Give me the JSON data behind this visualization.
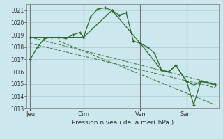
{
  "background_color": "#cce8ee",
  "grid_color": "#aacccc",
  "line_color": "#2d6a2d",
  "xlabel": "Pression niveau de la mer( hPa )",
  "ylim": [
    1013,
    1021.5
  ],
  "xlim": [
    0,
    27
  ],
  "yticks": [
    1013,
    1014,
    1015,
    1016,
    1017,
    1018,
    1019,
    1020,
    1021
  ],
  "day_labels": [
    "Jeu",
    "Dim",
    "Ven",
    "Sam"
  ],
  "day_positions": [
    0.5,
    8,
    16,
    22.5
  ],
  "vline_positions": [
    0.5,
    8,
    16,
    22.5
  ],
  "series1_x": [
    0.5,
    1.5,
    2.5,
    3.5,
    4.5,
    5.5,
    6.5,
    7.5,
    8.0,
    9.0,
    10.0,
    11.0,
    12.0,
    13.0,
    14.0,
    15.0,
    16.0,
    17.0,
    18.0,
    19.0,
    20.0,
    21.0,
    22.5,
    23.5,
    24.5,
    25.5,
    26.5
  ],
  "series1_y": [
    1017.0,
    1018.0,
    1018.7,
    1018.8,
    1018.8,
    1018.7,
    1019.0,
    1019.2,
    1018.8,
    1020.5,
    1021.1,
    1021.2,
    1021.0,
    1020.6,
    1020.8,
    1018.5,
    1018.3,
    1018.0,
    1017.5,
    1016.1,
    1016.0,
    1016.5,
    1015.2,
    1014.9,
    1015.2,
    1015.1,
    1014.9
  ],
  "trend1_x": [
    0.5,
    26.5
  ],
  "trend1_y": [
    1018.8,
    1015.0
  ],
  "trend2_x": [
    0.5,
    26.5
  ],
  "trend2_y": [
    1018.3,
    1014.7
  ],
  "trend3_x": [
    4.5,
    26.5
  ],
  "trend3_y": [
    1018.5,
    1013.3
  ],
  "series2_x": [
    0.5,
    4.5,
    8.0,
    12.0,
    16.0,
    19.0,
    20.0,
    21.0,
    22.5,
    23.5,
    24.5,
    25.5,
    26.5
  ],
  "series2_y": [
    1018.8,
    1018.8,
    1018.8,
    1021.0,
    1018.3,
    1016.1,
    1016.0,
    1016.5,
    1015.2,
    1013.3,
    1015.2,
    1015.1,
    1014.9
  ]
}
